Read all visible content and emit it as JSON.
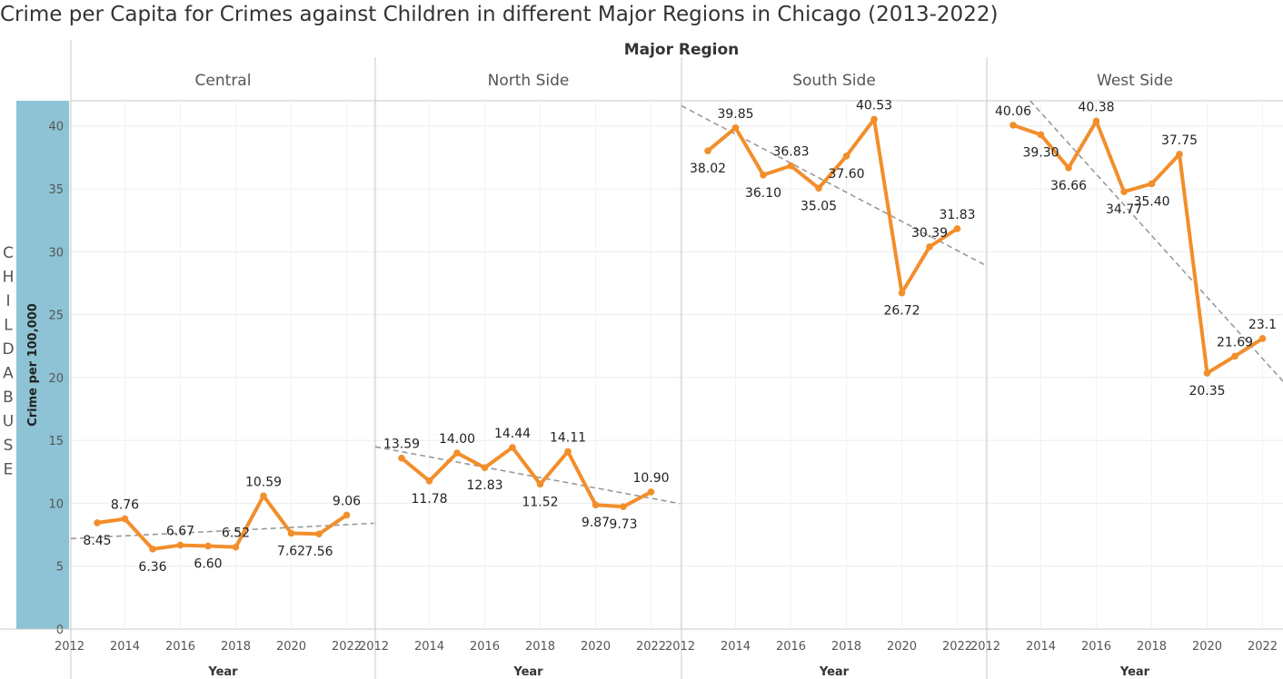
{
  "title": "Crime per Capita for Crimes against Children in different Major Regions in Chicago (2013-2022)",
  "column_header": "Major Region",
  "row_header_letters": [
    "C",
    "H",
    "I",
    "L",
    "D",
    "A",
    "B",
    "U",
    "S",
    "E"
  ],
  "chart_data": {
    "type": "line",
    "title": "Crime per Capita for Crimes against Children in different Major Regions in Chicago (2013-2022)",
    "ylabel": "Crime per 100,000",
    "xlabel": "Year",
    "ylim": [
      0,
      42
    ],
    "y_ticks": [
      0,
      5,
      10,
      15,
      20,
      25,
      30,
      35,
      40
    ],
    "xlim": [
      2012,
      2022.6
    ],
    "x_ticks": [
      2012,
      2014,
      2016,
      2018,
      2020,
      2022
    ],
    "x": [
      2013,
      2014,
      2015,
      2016,
      2017,
      2018,
      2019,
      2020,
      2021,
      2022
    ],
    "line_color": "#f28e2b",
    "trend_color": "#999999",
    "grid": true,
    "panels": [
      {
        "name": "Central",
        "values": [
          8.45,
          8.76,
          6.36,
          6.67,
          6.6,
          6.52,
          10.59,
          7.62,
          7.56,
          9.06
        ],
        "labels": [
          "8.45",
          "8.76",
          "6.36",
          "6.67",
          "6.60",
          "6.52",
          "10.59",
          "7.62",
          "7.56",
          "9.06"
        ],
        "label_side": [
          "below",
          "above",
          "below",
          "above",
          "below",
          "above",
          "above",
          "below",
          "below",
          "above"
        ],
        "trend": [
          7.3,
          8.3
        ]
      },
      {
        "name": "North Side",
        "values": [
          13.59,
          11.78,
          14.0,
          12.83,
          14.44,
          11.52,
          14.11,
          9.87,
          9.73,
          10.9
        ],
        "labels": [
          "13.59",
          "11.78",
          "14.00",
          "12.83",
          "14.44",
          "11.52",
          "14.11",
          "9.87",
          "9.73",
          "10.90"
        ],
        "label_side": [
          "above",
          "below",
          "above",
          "below",
          "above",
          "below",
          "above",
          "below",
          "below",
          "above"
        ],
        "trend": [
          14.1,
          10.4
        ]
      },
      {
        "name": "South Side",
        "values": [
          38.02,
          39.85,
          36.1,
          36.83,
          35.05,
          37.6,
          40.53,
          26.72,
          30.39,
          31.83
        ],
        "labels": [
          "38.02",
          "39.85",
          "36.10",
          "36.83",
          "35.05",
          "37.60",
          "40.53",
          "26.72",
          "30.39",
          "31.83"
        ],
        "label_side": [
          "below",
          "above",
          "below",
          "above",
          "below",
          "below",
          "above",
          "below",
          "above",
          "above"
        ],
        "trend": [
          40.5,
          30.1
        ]
      },
      {
        "name": "West Side",
        "values": [
          40.06,
          39.3,
          36.66,
          40.38,
          34.77,
          35.4,
          37.75,
          20.35,
          21.69,
          23.1
        ],
        "labels": [
          "40.06",
          "39.30",
          "36.66",
          "40.38",
          "34.77",
          "35.40",
          "37.75",
          "20.35",
          "21.69",
          "23.1"
        ],
        "label_side": [
          "above",
          "below",
          "below",
          "above",
          "below",
          "below",
          "above",
          "below",
          "above",
          "above"
        ],
        "trend": [
          43.5,
          21.5
        ]
      }
    ]
  }
}
